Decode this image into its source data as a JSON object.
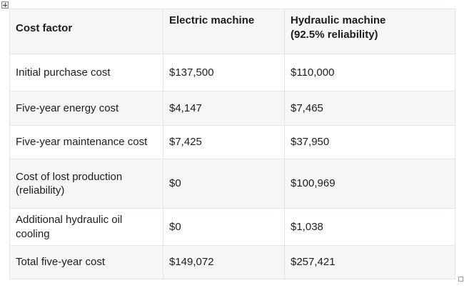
{
  "editor": {
    "icons": {
      "move_handle": "plus-in-square",
      "resize_handle": "small-square"
    },
    "colors": {
      "stripe_bg": "#f5f6f8",
      "border": "#e3e4e6",
      "text": "#1d1d1f",
      "page_bg": "#ffffff"
    }
  },
  "table": {
    "header": {
      "cells": [
        "Cost factor",
        "Electric machine",
        "Hydraulic machine\n(92.5% reliability)"
      ]
    },
    "rows": [
      {
        "cells": [
          "Initial purchase cost",
          "$137,500",
          "$110,000"
        ]
      },
      {
        "cells": [
          "Five-year energy cost",
          "$4,147",
          "$7,465"
        ]
      },
      {
        "cells": [
          "Five-year maintenance cost",
          "$7,425",
          "$37,950"
        ]
      },
      {
        "cells": [
          "Cost of lost production (reliability)",
          "$0",
          "$100,969"
        ]
      },
      {
        "cells": [
          "Additional hydraulic oil cooling",
          "$0",
          "$1,038"
        ]
      },
      {
        "cells": [
          "Total five-year cost",
          "$149,072",
          "$257,421"
        ]
      }
    ]
  }
}
